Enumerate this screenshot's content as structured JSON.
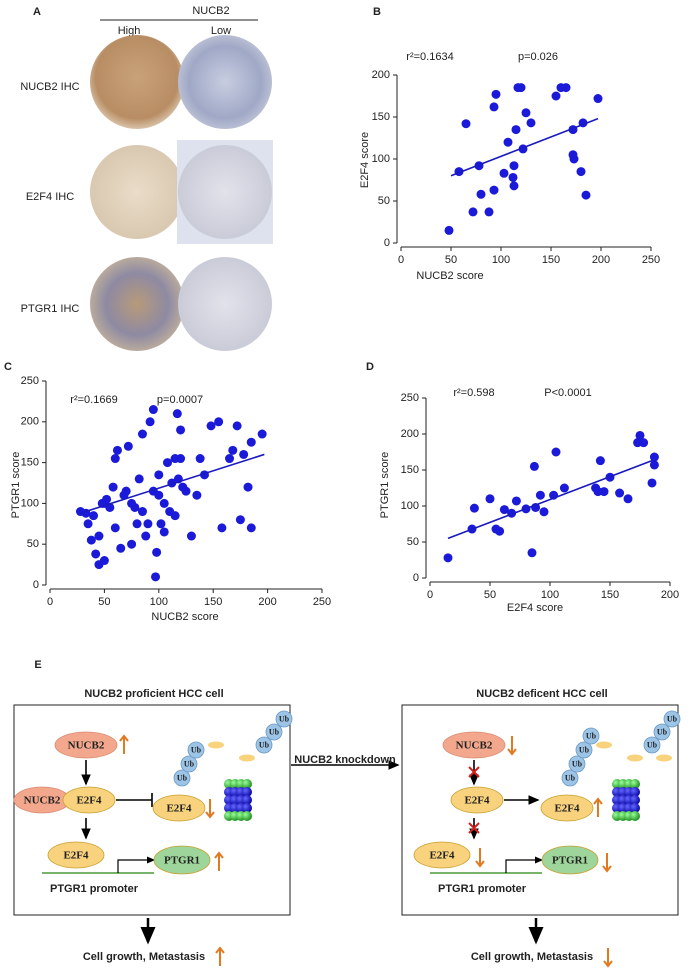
{
  "ihc": {
    "label": "A",
    "header": "NUCB2",
    "columns": [
      "High",
      "Low"
    ],
    "rows": [
      "NUCB2 IHC",
      "E2F4 IHC",
      "PTGR1 IHC"
    ]
  },
  "chart_data": [
    {
      "type": "scatter",
      "label": "B",
      "x_label": "NUCB2 score",
      "y_label": "E2F4  score",
      "annotations": [
        "r²=0.1634",
        "p=0.026"
      ],
      "color": "#1a1ad8",
      "line_color": "#1a1ac0",
      "x": [
        48,
        58,
        65,
        72,
        78,
        80,
        88,
        93,
        93,
        95,
        103,
        107,
        112,
        113,
        113,
        115,
        117,
        120,
        122,
        125,
        130,
        155,
        160,
        165,
        172,
        172,
        173,
        180,
        182,
        185,
        197
      ],
      "values": [
        15,
        85,
        142,
        37,
        92,
        58,
        37,
        162,
        63,
        177,
        83,
        120,
        78,
        92,
        68,
        135,
        185,
        185,
        112,
        155,
        143,
        175,
        185,
        185,
        135,
        105,
        100,
        85,
        143,
        57,
        172
      ],
      "fit_line": {
        "x": [
          50,
          197
        ],
        "values": [
          80,
          148
        ]
      },
      "xlim": [
        0,
        250
      ],
      "ylim": [
        0,
        200
      ],
      "xticks": [
        0,
        50,
        100,
        150,
        200,
        250
      ],
      "yticks": [
        0,
        50,
        100,
        150,
        200
      ]
    },
    {
      "type": "scatter",
      "label": "C",
      "x_label": "NUCB2 score",
      "y_label": "PTGR1 score",
      "annotations": [
        "r²=0.1669",
        "p=0.0007"
      ],
      "color": "#1a1ad8",
      "line_color": "#1a1ac0",
      "x": [
        28,
        33,
        35,
        38,
        40,
        42,
        45,
        45,
        48,
        50,
        50,
        52,
        55,
        58,
        60,
        60,
        62,
        65,
        68,
        70,
        72,
        75,
        75,
        78,
        80,
        82,
        85,
        85,
        88,
        90,
        92,
        95,
        95,
        97,
        98,
        100,
        100,
        102,
        105,
        105,
        108,
        110,
        112,
        115,
        115,
        117,
        118,
        120,
        120,
        122,
        125,
        130,
        135,
        138,
        142,
        148,
        155,
        158,
        165,
        168,
        172,
        175,
        178,
        182,
        185,
        185,
        195
      ],
      "values": [
        90,
        88,
        75,
        55,
        85,
        38,
        25,
        60,
        100,
        30,
        100,
        105,
        95,
        120,
        70,
        155,
        165,
        45,
        110,
        115,
        170,
        100,
        50,
        95,
        75,
        130,
        90,
        185,
        60,
        75,
        200,
        115,
        215,
        10,
        40,
        110,
        135,
        75,
        65,
        100,
        150,
        90,
        125,
        155,
        85,
        210,
        130,
        155,
        190,
        120,
        115,
        60,
        110,
        155,
        135,
        195,
        200,
        70,
        155,
        165,
        195,
        80,
        160,
        120,
        175,
        70,
        185
      ],
      "fit_line": {
        "x": [
          28,
          197
        ],
        "values": [
          88,
          160
        ]
      },
      "xlim": [
        0,
        250
      ],
      "ylim": [
        0,
        250
      ],
      "xticks": [
        0,
        50,
        100,
        150,
        200,
        250
      ],
      "yticks": [
        0,
        50,
        100,
        150,
        200,
        250
      ]
    },
    {
      "type": "scatter",
      "label": "D",
      "x_label": "E2F4  score",
      "y_label": "PTGR1 score",
      "annotations": [
        "r²=0.598",
        "P<0.0001"
      ],
      "color": "#1a1ad8",
      "line_color": "#1a1ac0",
      "x": [
        15,
        35,
        37,
        50,
        55,
        58,
        62,
        68,
        72,
        80,
        85,
        87,
        88,
        92,
        95,
        103,
        105,
        112,
        138,
        140,
        142,
        145,
        150,
        158,
        165,
        173,
        175,
        178,
        185,
        187,
        187
      ],
      "values": [
        28,
        68,
        97,
        110,
        68,
        65,
        95,
        90,
        107,
        96,
        35,
        155,
        98,
        115,
        92,
        115,
        175,
        125,
        125,
        120,
        163,
        120,
        140,
        118,
        110,
        188,
        198,
        188,
        132,
        168,
        157
      ],
      "fit_line": {
        "x": [
          15,
          185
        ],
        "values": [
          55,
          163
        ]
      },
      "xlim": [
        0,
        200
      ],
      "ylim": [
        0,
        250
      ],
      "xticks": [
        0,
        50,
        100,
        150,
        200
      ],
      "yticks": [
        0,
        50,
        100,
        150,
        200,
        250
      ]
    }
  ],
  "diagram": {
    "label": "E",
    "arrow_label": "NUCB2 knockdown",
    "left": {
      "title": "NUCB2  proficient HCC cell",
      "nucb2": [
        "NUCB2",
        "NUCB2"
      ],
      "e2f4": [
        "E2F4",
        "E2F4",
        "E2F4"
      ],
      "ptgr1": "PTGR1",
      "ub": [
        "Ub",
        "Ub",
        "Ub",
        "Ub",
        "Ub",
        "Ub"
      ],
      "promoter": "PTGR1  promoter",
      "outcome": "Cell growth, Metastasis"
    },
    "right": {
      "title": "NUCB2 deficent HCC cell",
      "nucb2": [
        "NUCB2"
      ],
      "e2f4": [
        "E2F4",
        "E2F4",
        "E2F4"
      ],
      "ptgr1": "PTGR1",
      "ub": [
        "Ub",
        "Ub",
        "Ub",
        "Ub",
        "Ub",
        "Ub",
        "Ub"
      ],
      "promoter": "PTGR1  promoter",
      "outcome": "Cell growth, Metastasis"
    }
  }
}
